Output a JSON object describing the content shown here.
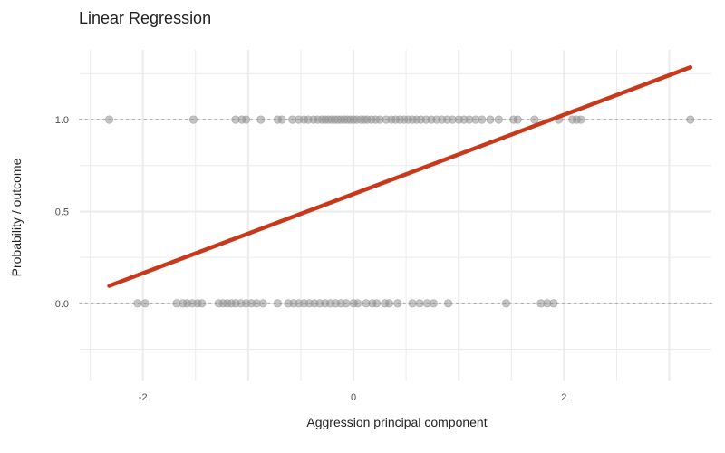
{
  "chart_data": {
    "type": "scatter",
    "title": "Linear Regression",
    "xlabel": "Aggression principal component",
    "ylabel": "Probability / outcome",
    "xlim": [
      -2.6,
      3.4
    ],
    "ylim": [
      -0.42,
      1.38
    ],
    "x_ticks": [
      -2,
      0,
      2
    ],
    "x_tick_labels": [
      "-2",
      "0",
      "2"
    ],
    "y_ticks": [
      0.0,
      0.5,
      1.0
    ],
    "y_tick_labels": [
      "0.0",
      "0.5",
      "1.0"
    ],
    "grid": true,
    "legend": "none",
    "reference_lines": [
      0,
      1
    ],
    "series": [
      {
        "type": "scatter",
        "y": 1,
        "x": [
          -2.32,
          -1.52,
          -1.12,
          -1.06,
          -1.02,
          -0.88,
          -0.72,
          -0.68,
          -0.58,
          -0.52,
          -0.47,
          -0.43,
          -0.38,
          -0.34,
          -0.3,
          -0.27,
          -0.24,
          -0.21,
          -0.18,
          -0.15,
          -0.12,
          -0.09,
          -0.06,
          -0.03,
          0.0,
          0.03,
          0.07,
          0.1,
          0.13,
          0.17,
          0.21,
          0.25,
          0.31,
          0.36,
          0.4,
          0.44,
          0.48,
          0.52,
          0.56,
          0.6,
          0.64,
          0.69,
          0.74,
          0.79,
          0.84,
          0.89,
          0.94,
          1.0,
          1.05,
          1.1,
          1.16,
          1.22,
          1.3,
          1.38,
          1.52,
          1.56,
          1.72,
          1.95,
          2.08,
          2.12,
          2.16,
          3.2
        ]
      },
      {
        "type": "scatter",
        "y": 0,
        "x": [
          -2.05,
          -1.98,
          -1.68,
          -1.62,
          -1.58,
          -1.53,
          -1.48,
          -1.44,
          -1.28,
          -1.24,
          -1.2,
          -1.16,
          -1.12,
          -1.07,
          -1.02,
          -0.97,
          -0.92,
          -0.86,
          -0.72,
          -0.62,
          -0.57,
          -0.52,
          -0.47,
          -0.42,
          -0.37,
          -0.32,
          -0.27,
          -0.22,
          -0.17,
          -0.12,
          -0.07,
          0.0,
          0.04,
          0.12,
          0.18,
          0.22,
          0.3,
          0.34,
          0.42,
          0.56,
          0.63,
          0.7,
          0.76,
          0.9,
          1.45,
          1.78,
          1.84,
          1.9
        ]
      },
      {
        "type": "line",
        "name": "",
        "x": [
          -2.32,
          3.2
        ],
        "y": [
          0.095,
          1.285
        ],
        "color": "#c8391b"
      }
    ]
  },
  "colors": {
    "point_fill": "#8c8c8c",
    "point_stroke": "#a3a3a3",
    "fit_line": "#c8391b",
    "grid": "#ebebeb",
    "reference_line": "#b0b0b0"
  }
}
